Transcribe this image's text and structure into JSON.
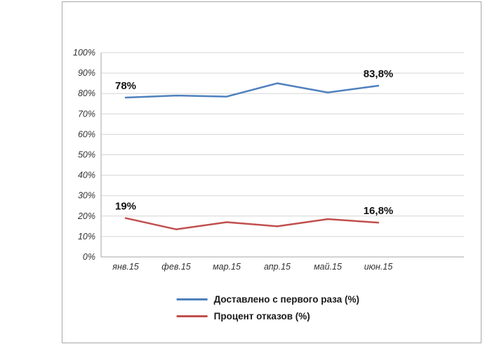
{
  "chart_data": {
    "type": "line",
    "categories": [
      "янв.15",
      "фев.15",
      "мар.15",
      "апр.15",
      "май.15",
      "июн.15"
    ],
    "series": [
      {
        "name": "Доставлено с первого раза (%)",
        "color": "#4F81BD",
        "values": [
          78,
          79,
          78.5,
          85,
          80.5,
          83.8
        ]
      },
      {
        "name": "Процент отказов (%)",
        "color": "#C0504D",
        "values": [
          19,
          13.5,
          17,
          15,
          18.5,
          16.8
        ]
      }
    ],
    "title": "",
    "xlabel": "",
    "ylabel": "",
    "ylim": [
      0,
      100
    ],
    "ytick_step": 10,
    "ytick_labels": [
      "0%",
      "10%",
      "20%",
      "30%",
      "40%",
      "50%",
      "60%",
      "70%",
      "80%",
      "90%",
      "100%"
    ],
    "grid": true,
    "legend_position": "bottom",
    "annotations": [
      {
        "series": 0,
        "index": 0,
        "text": "78%"
      },
      {
        "series": 0,
        "index": 5,
        "text": "83,8%"
      },
      {
        "series": 1,
        "index": 0,
        "text": "19%"
      },
      {
        "series": 1,
        "index": 5,
        "text": "16,8%"
      }
    ]
  },
  "colors": {
    "grid": "#d6d6d6",
    "axis": "#a6a6a6",
    "frame_border": "#a8a8a8",
    "tick_text": "#333333",
    "label_text": "#111111"
  }
}
